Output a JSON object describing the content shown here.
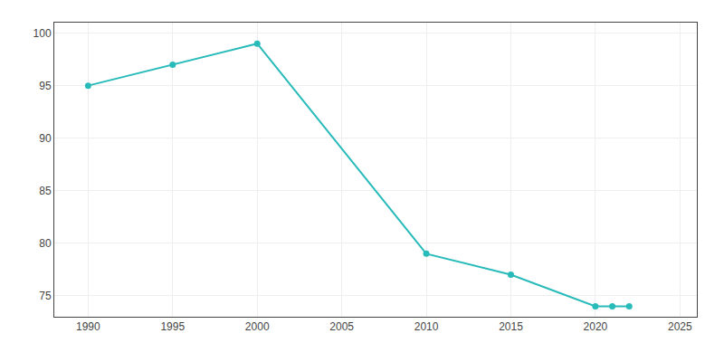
{
  "chart_data": {
    "type": "line",
    "x": [
      1990,
      1995,
      2000,
      2010,
      2015,
      2020,
      2021,
      2022
    ],
    "values": [
      95,
      97,
      99,
      79,
      77,
      74,
      74,
      74
    ],
    "color": "#29BABA",
    "marker": "circle",
    "xlim": [
      1988,
      2026
    ],
    "ylim": [
      73,
      101
    ],
    "xticks": [
      1990,
      1995,
      2000,
      2005,
      2010,
      2015,
      2020,
      2025
    ],
    "yticks": [
      75,
      80,
      85,
      90,
      95,
      100
    ],
    "grid": true
  }
}
